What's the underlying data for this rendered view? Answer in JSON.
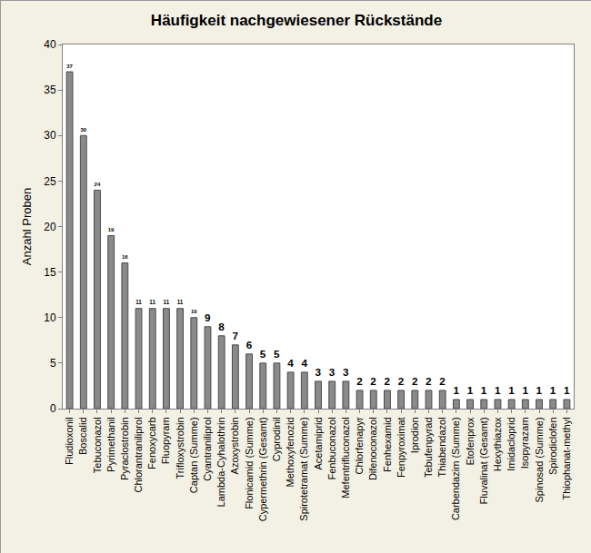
{
  "chart_data": {
    "type": "bar",
    "title": "Häufigkeit nachgewiesener Rückstände",
    "y_label": "Anzahl Proben",
    "categories": [
      "Fludioxonil",
      "Boscalid",
      "Tebuconazol",
      "Pyrimethanil",
      "Pyraclostrobin",
      "Chlorantraniliprol",
      "Fenoxycarb",
      "Fluopyram",
      "Trifloxystrobin",
      "Captan (Summe)",
      "Cyantraniliprol",
      "Lambda-Cyhalothrin",
      "Azoxystrobin",
      "Flonicamid (Summe)",
      "Cypermethrin (Gesamt)",
      "Cyprodinil",
      "Methoxyfenozid",
      "Spirotetramat (Summe)",
      "Acetamiprid",
      "Fenbuconazol",
      "Mefentrifluconazol",
      "Chlorfenapyr",
      "Difenoconazol",
      "Fenhexamid",
      "Fenpyroximat",
      "Iprodion",
      "Tebufenpyrad",
      "Thiabendazol",
      "Carbendazim (Summe)",
      "Etofenprox",
      "Fluvalinat (Gesamt)",
      "Hexythiazox",
      "Imidacloprid",
      "Isopyrazam",
      "Spinosad (Summe)",
      "Spirodiclofen",
      "Thiophanat-methyl"
    ],
    "values": [
      37,
      30,
      24,
      19,
      16,
      11,
      11,
      11,
      11,
      10,
      9,
      8,
      7,
      6,
      5,
      5,
      4,
      4,
      3,
      3,
      3,
      2,
      2,
      2,
      2,
      2,
      2,
      2,
      1,
      1,
      1,
      1,
      1,
      1,
      1,
      1,
      1
    ],
    "color": "#8a8a8a",
    "ylim": [
      0,
      40
    ],
    "yticks": [
      0,
      5,
      10,
      15,
      20,
      25,
      30,
      35,
      40
    ],
    "grid": false,
    "data_labels": true
  }
}
